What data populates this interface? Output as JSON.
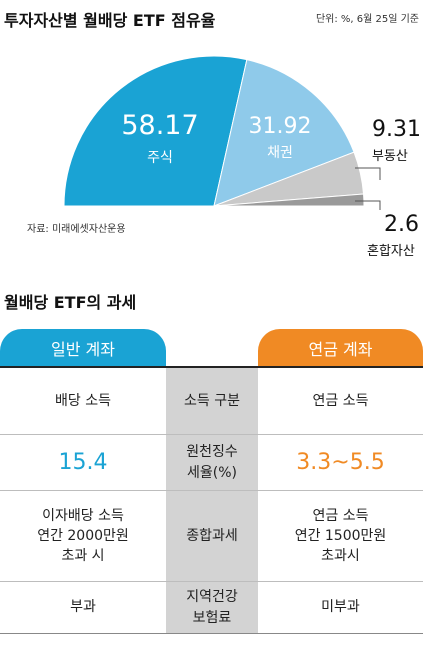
{
  "header": {
    "title": "투자자산별 월배당 ETF 점유율",
    "unit_note": "단위: %, 6월 25일 기준"
  },
  "chart_data": {
    "type": "pie",
    "title": "투자자산별 월배당 ETF 점유율",
    "unit": "%",
    "slices": [
      {
        "label": "주식",
        "value": 58.17,
        "color": "#1aa3d4"
      },
      {
        "label": "채권",
        "value": 31.92,
        "color": "#8fcaea"
      },
      {
        "label": "부동산",
        "value": 9.31,
        "color": "#c9c9c9"
      },
      {
        "label": "혼합자산",
        "value": 2.6,
        "color": "#9a9a9a"
      }
    ],
    "value_labels": [
      "58.17",
      "31.92",
      "9.31",
      "2.6"
    ],
    "source": "자료: 미래에셋자산운용"
  },
  "tax_table": {
    "title": "월배당 ETF의 과세",
    "col_general": "일반 계좌",
    "col_pension": "연금 계좌",
    "col_general_color": "#1aa3d4",
    "col_pension_color": "#f08a24",
    "rows": [
      {
        "category": "소득 구분",
        "general": "배당 소득",
        "pension": "연금 소득"
      },
      {
        "category": "원천징수\n세율(%)",
        "general": "15.4",
        "pension": "3.3~5.5"
      },
      {
        "category": "종합과세",
        "general": "이자배당 소득\n연간 2000만원\n초과 시",
        "pension": "연금 소득\n연간 1500만원\n초과시"
      },
      {
        "category": "지역건강\n보험료",
        "general": "부과",
        "pension": "미부과"
      }
    ]
  }
}
